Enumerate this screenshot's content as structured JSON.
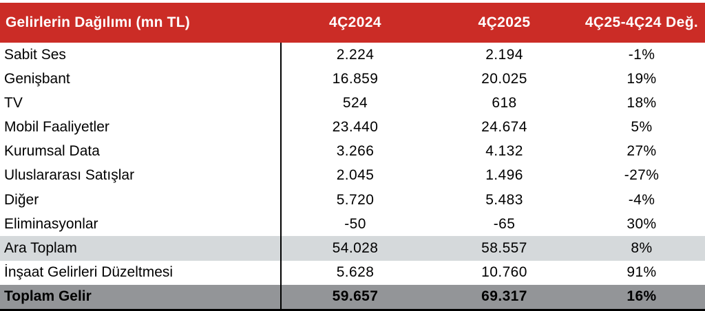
{
  "table": {
    "header": {
      "title": "Gelirlerin Dağılımı (mn TL)",
      "col_2024": "4Ç2024",
      "col_2025": "4Ç2025",
      "col_change": "4Ç25-4Ç24 Değ."
    },
    "rows": [
      {
        "label": "Sabit Ses",
        "v2024": "2.224",
        "v2025": "2.194",
        "chg": "-1%",
        "variant": "normal"
      },
      {
        "label": "Genişbant",
        "v2024": "16.859",
        "v2025": "20.025",
        "chg": "19%",
        "variant": "normal"
      },
      {
        "label": "TV",
        "v2024": "524",
        "v2025": "618",
        "chg": "18%",
        "variant": "normal"
      },
      {
        "label": "Mobil Faaliyetler",
        "v2024": "23.440",
        "v2025": "24.674",
        "chg": "5%",
        "variant": "normal"
      },
      {
        "label": "Kurumsal Data",
        "v2024": "3.266",
        "v2025": "4.132",
        "chg": "27%",
        "variant": "normal"
      },
      {
        "label": "Uluslararası Satışlar",
        "v2024": "2.045",
        "v2025": "1.496",
        "chg": "-27%",
        "variant": "normal"
      },
      {
        "label": "Diğer",
        "v2024": "5.720",
        "v2025": "5.483",
        "chg": "-4%",
        "variant": "normal"
      },
      {
        "label": "Eliminasyonlar",
        "v2024": "-50",
        "v2025": "-65",
        "chg": "30%",
        "variant": "normal"
      },
      {
        "label": "Ara Toplam",
        "v2024": "54.028",
        "v2025": "58.557",
        "chg": "8%",
        "variant": "subtotal"
      },
      {
        "label": "İnşaat Gelirleri Düzeltmesi",
        "v2024": "5.628",
        "v2025": "10.760",
        "chg": "91%",
        "variant": "normal"
      },
      {
        "label": "Toplam Gelir",
        "v2024": "59.657",
        "v2025": "69.317",
        "chg": "16%",
        "variant": "total"
      }
    ],
    "colors": {
      "header_bg": "#CB2C26",
      "header_text": "#FFFFFF",
      "subtotal_bg": "#D5D9DB",
      "total_bg": "#939598",
      "line": "#000000",
      "text": "#000000"
    }
  },
  "chart_data": {
    "type": "table",
    "title": "Gelirlerin Dağılımı (mn TL)",
    "columns": [
      "Gelirlerin Dağılımı (mn TL)",
      "4Ç2024",
      "4Ç2025",
      "4Ç25-4Ç24 Değ."
    ],
    "rows": [
      [
        "Sabit Ses",
        2224,
        2194,
        "-1%"
      ],
      [
        "Genişbant",
        16859,
        20025,
        "19%"
      ],
      [
        "TV",
        524,
        618,
        "18%"
      ],
      [
        "Mobil Faaliyetler",
        23440,
        24674,
        "5%"
      ],
      [
        "Kurumsal Data",
        3266,
        4132,
        "27%"
      ],
      [
        "Uluslararası Satışlar",
        2045,
        1496,
        "-27%"
      ],
      [
        "Diğer",
        5720,
        5483,
        "-4%"
      ],
      [
        "Eliminasyonlar",
        -50,
        -65,
        "30%"
      ],
      [
        "Ara Toplam",
        54028,
        58557,
        "8%"
      ],
      [
        "İnşaat Gelirleri Düzeltmesi",
        5628,
        10760,
        "91%"
      ],
      [
        "Toplam Gelir",
        59657,
        69317,
        "16%"
      ]
    ]
  }
}
